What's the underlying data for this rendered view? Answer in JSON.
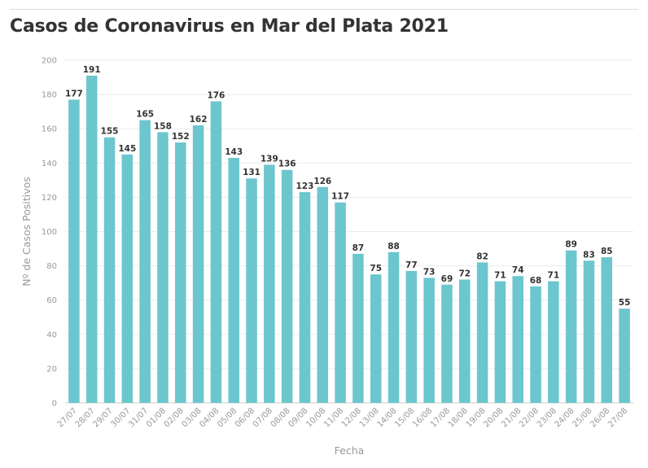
{
  "chart_data": {
    "type": "bar",
    "title": "Casos de Coronavirus en Mar del Plata 2021",
    "xlabel": "Fecha",
    "ylabel": "Nº de Casos Positivos",
    "ylim": [
      0,
      200
    ],
    "yticks": [
      0,
      20,
      40,
      60,
      80,
      100,
      120,
      140,
      160,
      180,
      200
    ],
    "grid": true,
    "bar_color": "#6cc6cd",
    "categories": [
      "27/07",
      "28/07",
      "29/07",
      "30/07",
      "31/07",
      "01/08",
      "02/08",
      "03/08",
      "04/08",
      "05/08",
      "06/08",
      "07/08",
      "08/08",
      "09/08",
      "10/08",
      "11/08",
      "12/08",
      "13/08",
      "14/08",
      "15/08",
      "16/08",
      "17/08",
      "18/08",
      "19/08",
      "20/08",
      "21/08",
      "22/08",
      "23/08",
      "24/08",
      "25/08",
      "26/08",
      "27/08"
    ],
    "values": [
      177,
      191,
      155,
      145,
      165,
      158,
      152,
      162,
      176,
      143,
      131,
      139,
      136,
      123,
      126,
      117,
      87,
      75,
      88,
      77,
      73,
      69,
      72,
      82,
      71,
      74,
      68,
      71,
      89,
      83,
      85,
      55
    ]
  }
}
